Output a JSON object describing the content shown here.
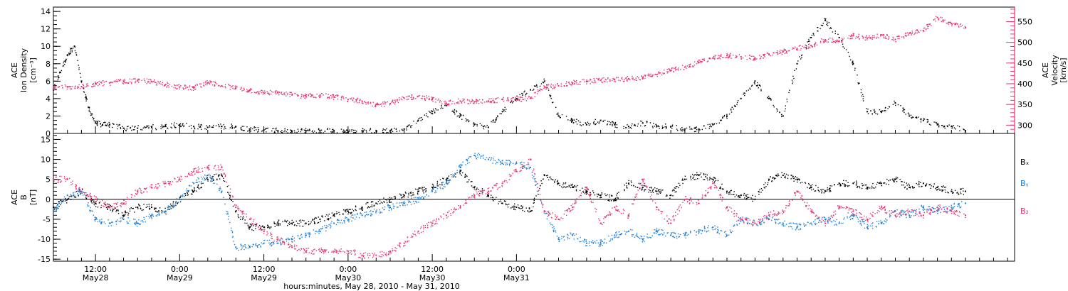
{
  "chart_data": [
    {
      "type": "scatter",
      "panel": "top",
      "ylabel_left": [
        "ACE",
        "Ion Density",
        "[cm⁻³]"
      ],
      "ylabel_right": [
        "ACE",
        "Velocity",
        "[km/s]"
      ],
      "ylim_left": [
        0,
        14.5
      ],
      "ylim_right": [
        280,
        585
      ],
      "yticks_left": [
        0,
        2,
        4,
        6,
        8,
        10,
        12,
        14
      ],
      "yticks_right": [
        300,
        350,
        400,
        450,
        500,
        550
      ],
      "grid": false,
      "series": [
        {
          "axis": "left",
          "color": "#000000",
          "x": [
            0,
            1,
            2,
            3,
            4,
            5,
            6,
            7,
            8,
            10,
            12,
            14,
            16,
            18,
            20,
            22,
            24,
            26,
            28,
            30,
            32,
            34,
            36,
            38,
            40,
            42,
            44,
            46,
            48,
            50,
            52,
            54,
            56,
            58,
            60,
            62,
            64,
            66,
            68,
            70,
            72,
            74,
            76,
            78,
            80,
            82,
            84,
            86,
            88,
            90,
            92,
            94,
            96,
            98,
            100,
            102,
            104,
            106,
            108,
            110,
            112,
            114,
            116,
            118,
            120,
            122,
            124,
            126,
            128,
            130
          ],
          "y": [
            5,
            7,
            9,
            10,
            6,
            3,
            1.2,
            1.0,
            1.0,
            0.6,
            0.6,
            0.7,
            0.8,
            1.0,
            0.8,
            0.7,
            0.8,
            0.8,
            0.5,
            0.4,
            0.3,
            0.2,
            0.3,
            0.3,
            0.3,
            0.2,
            0.3,
            0.3,
            0.3,
            0.5,
            1.5,
            2.5,
            3.2,
            2.0,
            1.0,
            0.7,
            2.5,
            4,
            5,
            6,
            2.0,
            1.5,
            1.0,
            1.5,
            1.0,
            0.8,
            1.2,
            0.8,
            0.8,
            0.5,
            0.5,
            1.0,
            2.0,
            4,
            6,
            4,
            2,
            8,
            11,
            13,
            11,
            8,
            2.5,
            2.5,
            3.5,
            2.0,
            1.5,
            1.0,
            0.8,
            0.3
          ]
        },
        {
          "axis": "right",
          "color": "#e8336e",
          "x": [
            0,
            2,
            4,
            6,
            8,
            10,
            12,
            14,
            16,
            18,
            20,
            22,
            24,
            26,
            28,
            30,
            32,
            34,
            36,
            38,
            40,
            42,
            44,
            46,
            48,
            50,
            52,
            54,
            56,
            58,
            60,
            62,
            64,
            66,
            68,
            70,
            72,
            74,
            76,
            78,
            80,
            82,
            84,
            86,
            88,
            90,
            92,
            94,
            96,
            98,
            100,
            102,
            104,
            106,
            108,
            110,
            112,
            114,
            116,
            118,
            120,
            122,
            124,
            126,
            128,
            130
          ],
          "y": [
            390,
            392,
            393,
            400,
            402,
            405,
            407,
            405,
            398,
            392,
            390,
            402,
            395,
            390,
            384,
            378,
            378,
            373,
            370,
            372,
            368,
            362,
            358,
            350,
            352,
            365,
            370,
            362,
            353,
            358,
            356,
            358,
            362,
            362,
            365,
            392,
            395,
            402,
            405,
            408,
            410,
            412,
            415,
            422,
            432,
            440,
            452,
            462,
            468,
            465,
            462,
            470,
            477,
            485,
            492,
            506,
            502,
            516,
            510,
            518,
            507,
            522,
            528,
            560,
            545,
            535
          ]
        }
      ]
    },
    {
      "type": "scatter",
      "panel": "bottom",
      "ylabel_left": [
        "ACE",
        "B",
        "[nT]"
      ],
      "ylim": [
        -15.5,
        16.5
      ],
      "yticks": [
        -15,
        -10,
        -5,
        0,
        5,
        10,
        15
      ],
      "zero_line": true,
      "grid": false,
      "legend": [
        "Bₓ",
        "Bᵧ",
        "B₂"
      ],
      "legend_placement": "right",
      "series": [
        {
          "name": "Bx",
          "color": "#000000",
          "x": [
            0,
            2,
            4,
            6,
            8,
            10,
            12,
            14,
            16,
            18,
            20,
            22,
            24,
            26,
            28,
            30,
            32,
            34,
            36,
            38,
            40,
            42,
            44,
            46,
            48,
            50,
            52,
            54,
            56,
            58,
            60,
            62,
            64,
            66,
            68,
            70,
            72,
            74,
            76,
            78,
            80,
            82,
            84,
            86,
            88,
            90,
            92,
            94,
            96,
            98,
            100,
            102,
            104,
            106,
            108,
            110,
            112,
            114,
            116,
            118,
            120,
            122,
            124,
            126,
            128,
            130
          ],
          "y": [
            -2,
            0,
            2,
            -1,
            -2,
            -4,
            -2,
            -2,
            -3,
            0,
            2,
            5,
            6,
            -3,
            -7,
            -7,
            -6,
            -6,
            -6,
            -5,
            -4,
            -3,
            -2,
            -1,
            0,
            1,
            2,
            3,
            5,
            7,
            3,
            1,
            -1,
            -2,
            -3,
            6,
            4,
            3,
            2,
            1,
            0,
            4,
            3,
            2,
            1,
            5,
            6,
            5,
            2,
            1,
            0,
            5,
            6,
            5,
            3,
            2,
            4,
            4,
            3,
            4,
            5,
            3,
            4,
            3,
            2,
            2
          ]
        },
        {
          "name": "By",
          "color": "#1e7fdb",
          "x": [
            0,
            2,
            4,
            6,
            8,
            10,
            12,
            14,
            16,
            18,
            20,
            22,
            24,
            26,
            28,
            30,
            32,
            34,
            36,
            38,
            40,
            42,
            44,
            46,
            48,
            50,
            52,
            54,
            56,
            58,
            60,
            62,
            64,
            66,
            68,
            70,
            72,
            74,
            76,
            78,
            80,
            82,
            84,
            86,
            88,
            90,
            92,
            94,
            96,
            98,
            100,
            102,
            104,
            106,
            108,
            110,
            112,
            114,
            116,
            118,
            120,
            122,
            124,
            126,
            128,
            130
          ],
          "y": [
            -3,
            1,
            2,
            -5,
            -6,
            -5,
            -6,
            -4,
            -3,
            0,
            4,
            6,
            2,
            -12,
            -12,
            -11,
            -11,
            -10,
            -9,
            -8,
            -6,
            -5,
            -4,
            -3,
            -2,
            -1,
            0,
            2,
            4,
            8,
            11,
            10,
            9,
            9,
            8,
            -3,
            -10,
            -9,
            -11,
            -11,
            -9,
            -8,
            -10,
            -8,
            -9,
            -9,
            -8,
            -7,
            -9,
            -5,
            -6,
            -5,
            -6,
            -7,
            -6,
            -5,
            -6,
            -4,
            -7,
            -6,
            -3,
            -4,
            -2,
            -3,
            -2,
            -1
          ]
        },
        {
          "name": "Bz",
          "color": "#e8336e",
          "x": [
            0,
            2,
            4,
            6,
            8,
            10,
            12,
            14,
            16,
            18,
            20,
            22,
            24,
            26,
            28,
            30,
            32,
            34,
            36,
            38,
            40,
            42,
            44,
            46,
            48,
            50,
            52,
            54,
            56,
            58,
            60,
            62,
            64,
            66,
            68,
            70,
            72,
            74,
            76,
            78,
            80,
            82,
            84,
            86,
            88,
            90,
            92,
            94,
            96,
            98,
            100,
            102,
            104,
            106,
            108,
            110,
            112,
            114,
            116,
            118,
            120,
            122,
            124,
            126,
            128,
            130
          ],
          "y": [
            5,
            5,
            2,
            0,
            -2,
            -1,
            2,
            3,
            4,
            5,
            7,
            8,
            8,
            -2,
            -5,
            -8,
            -10,
            -12,
            -13,
            -13,
            -13,
            -13,
            -14,
            -14,
            -13,
            -11,
            -8,
            -6,
            -4,
            -2,
            1,
            2,
            4,
            7,
            10,
            -3,
            -5,
            -2,
            3,
            -6,
            -2,
            -4,
            5,
            -2,
            -6,
            0,
            -1,
            4,
            -2,
            -5,
            -6,
            -4,
            -3,
            2,
            -3,
            -6,
            -2,
            -3,
            -5,
            -2,
            -4,
            -3,
            -4,
            -2,
            -3,
            -4
          ]
        }
      ]
    }
  ],
  "xaxis": {
    "xlim_hours": [
      0,
      137
    ],
    "ticks": [
      {
        "hour": 6,
        "label": "12:00",
        "sub": "May28"
      },
      {
        "hour": 18,
        "label": "0:00",
        "sub": "May29"
      },
      {
        "hour": 30,
        "label": "12:00",
        "sub": "May29"
      },
      {
        "hour": 42,
        "label": "0:00",
        "sub": "May30"
      },
      {
        "hour": 54,
        "label": "12:00",
        "sub": "May30"
      },
      {
        "hour": 66,
        "label": "0:00",
        "sub": "May31"
      }
    ],
    "title": "hours:minutes, May 28, 2010 - May 31, 2010"
  }
}
